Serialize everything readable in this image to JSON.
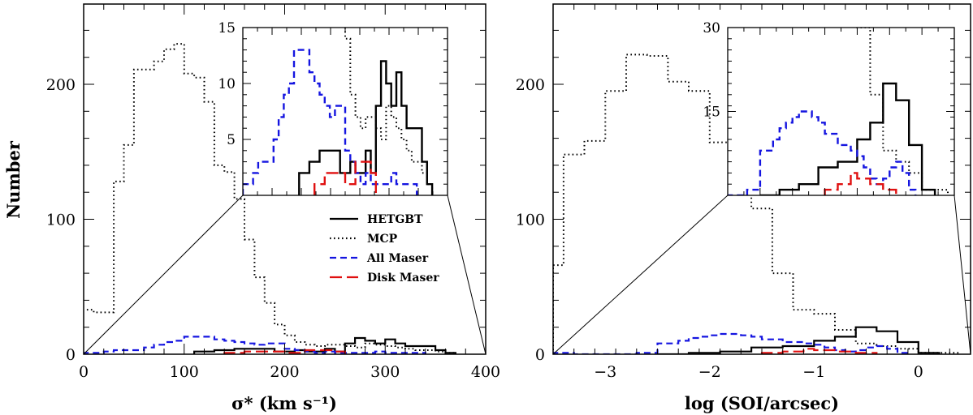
{
  "chart_data": [
    {
      "type": "step",
      "panel": "left",
      "xlabel": "σ* (km s⁻¹)",
      "ylabel": "Number",
      "xlim": [
        0,
        400
      ],
      "ylim": [
        0,
        250
      ],
      "xticks": [
        "0",
        "100",
        "200",
        "300",
        "400"
      ],
      "yticks": [
        "0",
        "100",
        "200"
      ],
      "inset": {
        "xlim": [
          0,
          400
        ],
        "ylim": [
          0,
          15
        ],
        "yticks": [
          "5",
          "10",
          "15"
        ]
      },
      "legend": {
        "position": "center-right",
        "entries": [
          {
            "name": "HETGBT",
            "style": "solid",
            "color": "#000000"
          },
          {
            "name": "MCP",
            "style": "dotted",
            "color": "#000000"
          },
          {
            "name": "All Maser",
            "style": "dashed",
            "color": "#1515e0"
          },
          {
            "name": "Disk Maser",
            "style": "longdash",
            "color": "#e01010"
          }
        ]
      },
      "series": [
        {
          "name": "HETGBT",
          "style": "solid",
          "color": "#000000",
          "edges": [
            110,
            130,
            150,
            170,
            190,
            210,
            220,
            230,
            240,
            250,
            260,
            270,
            280,
            290,
            300,
            310,
            320,
            340,
            350,
            360,
            370
          ],
          "values": [
            2,
            3,
            4,
            4,
            2,
            3,
            2,
            2,
            4,
            2,
            8,
            12,
            10,
            8,
            11,
            8,
            6,
            6,
            3,
            1
          ]
        },
        {
          "name": "MCP",
          "style": "dotted",
          "color": "#000000",
          "edges": [
            -5,
            10,
            30,
            40,
            50,
            70,
            80,
            90,
            100,
            110,
            120,
            130,
            140,
            150,
            160,
            170,
            180,
            190,
            200,
            210,
            220,
            230,
            240,
            250,
            260,
            270,
            280,
            290,
            300,
            310,
            320,
            330,
            340,
            350,
            360,
            370
          ],
          "values": [
            33,
            31,
            128,
            155,
            211,
            217,
            226,
            230,
            208,
            205,
            187,
            140,
            135,
            115,
            85,
            57,
            38,
            22,
            14,
            9,
            7,
            6,
            7,
            7,
            6,
            5,
            8,
            7,
            6,
            5,
            4,
            3,
            3,
            2,
            1
          ]
        },
        {
          "name": "All Maser",
          "style": "dashed",
          "color": "#1515e0",
          "edges": [
            0,
            10,
            20,
            30,
            40,
            50,
            60,
            70,
            80,
            90,
            100,
            110,
            120,
            130,
            140,
            150,
            160,
            170,
            180,
            190,
            200,
            210,
            220,
            230,
            240,
            250,
            260,
            270,
            280,
            290,
            300,
            310,
            320,
            330,
            340
          ],
          "values": [
            1,
            1,
            2,
            3,
            3,
            3,
            5,
            7,
            9,
            10,
            13,
            13,
            13,
            11,
            10,
            9,
            8,
            7,
            8,
            8,
            4,
            3,
            2,
            1,
            2,
            1,
            1,
            1,
            1,
            2,
            1,
            1,
            1,
            1
          ]
        },
        {
          "name": "Disk Maser",
          "style": "longdash",
          "color": "#e01010",
          "edges": [
            140,
            160,
            180,
            200,
            220,
            230,
            240,
            250,
            260
          ],
          "values": [
            1,
            2,
            2,
            1,
            3,
            3,
            3,
            2
          ]
        }
      ]
    },
    {
      "type": "step",
      "panel": "right",
      "xlabel": "log (SOI/arcsec)",
      "ylabel": "",
      "xlim": [
        -3.5,
        0.5
      ],
      "ylim": [
        0,
        250
      ],
      "xticks": [
        "−3",
        "−2",
        "−1",
        "0"
      ],
      "yticks": [
        "0",
        "100",
        "200"
      ],
      "inset": {
        "xlim": [
          -3.0,
          0.5
        ],
        "ylim": [
          0,
          30
        ],
        "yticks": [
          "15",
          "30"
        ]
      },
      "series": [
        {
          "name": "HETGBT",
          "style": "solid",
          "color": "#000000",
          "edges": [
            -2.5,
            -2.2,
            -1.9,
            -1.6,
            -1.3,
            -1.0,
            -0.8,
            -0.6,
            -0.4,
            -0.2,
            0.0,
            0.2
          ],
          "values": [
            0,
            1,
            2,
            5,
            6,
            10,
            13,
            20,
            17,
            9,
            1
          ]
        },
        {
          "name": "MCP",
          "style": "dotted",
          "color": "#000000",
          "edges": [
            -3.5,
            -3.4,
            -3.2,
            -3.0,
            -2.8,
            -2.6,
            -2.4,
            -2.2,
            -2.0,
            -1.8,
            -1.6,
            -1.4,
            -1.2,
            -1.0,
            -0.8,
            -0.6,
            -0.4,
            -0.2,
            0.0,
            0.2,
            0.4
          ],
          "values": [
            66,
            148,
            158,
            195,
            222,
            221,
            202,
            195,
            157,
            143,
            108,
            60,
            33,
            30,
            18,
            8,
            6,
            4,
            1,
            1
          ]
        },
        {
          "name": "All Maser",
          "style": "dashed",
          "color": "#1515e0",
          "edges": [
            -3.5,
            -3.3,
            -3.0,
            -2.7,
            -2.5,
            -2.3,
            -2.2,
            -2.1,
            -2.0,
            -1.9,
            -1.8,
            -1.7,
            -1.6,
            -1.5,
            -1.3,
            -1.1,
            -1.0,
            -0.9,
            -0.8,
            -0.7,
            -0.6,
            -0.5,
            -0.4,
            -0.3,
            -0.2,
            -0.1
          ],
          "values": [
            1,
            0,
            0,
            1,
            8,
            10,
            12,
            13,
            14,
            15,
            15,
            14,
            13,
            11,
            9,
            8,
            7,
            5,
            3,
            2,
            3,
            5,
            6,
            4,
            1
          ]
        },
        {
          "name": "Disk Maser",
          "style": "longdash",
          "color": "#e01010",
          "edges": [
            -1.5,
            -1.3,
            -1.1,
            -1.0,
            -0.8,
            -0.6,
            -0.4
          ],
          "values": [
            1,
            2,
            4,
            3,
            2,
            1
          ]
        }
      ]
    }
  ]
}
